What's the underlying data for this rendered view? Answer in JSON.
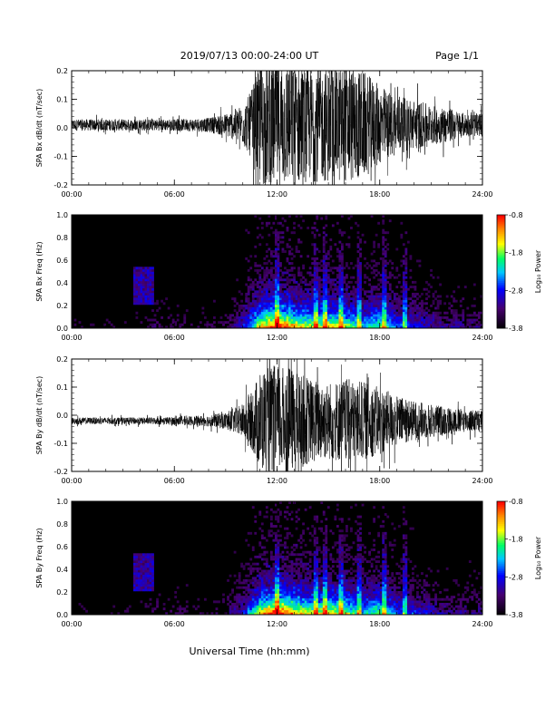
{
  "header": {
    "title": "2019/07/13  00:00-24:00 UT",
    "page": "Page 1/1"
  },
  "footer": {
    "xlabel": "Universal Time (hh:mm)"
  },
  "colorbar": {
    "label": "Log₁₀ Power",
    "ticks": [
      "-0.8",
      "-1.8",
      "-2.8",
      "-3.8"
    ],
    "range": [
      -3.8,
      -0.8
    ],
    "colors": [
      "#000000",
      "#5a007a",
      "#0000ff",
      "#00c8ff",
      "#00ff66",
      "#ffff00",
      "#ff8800",
      "#ff0000"
    ]
  },
  "chart_data": [
    {
      "type": "line",
      "ylabel": "SPA Bx dB/dt (nT/sec)",
      "ylim": [
        -0.2,
        0.2
      ],
      "yticks": [
        "0.2",
        "0.1",
        "0.0",
        "-0.1",
        "-0.2"
      ],
      "xlim": [
        0,
        24
      ],
      "xticks": [
        "00:00",
        "06:00",
        "12:00",
        "18:00",
        "24:00"
      ],
      "envelope": {
        "t": [
          0,
          2,
          4,
          6,
          8,
          9,
          10,
          10.5,
          11,
          12,
          13,
          14,
          15,
          16,
          17,
          18,
          19,
          20,
          21,
          22,
          23,
          24
        ],
        "amp": [
          0.02,
          0.02,
          0.02,
          0.02,
          0.025,
          0.04,
          0.07,
          0.12,
          0.22,
          0.22,
          0.22,
          0.2,
          0.2,
          0.21,
          0.19,
          0.14,
          0.1,
          0.09,
          0.07,
          0.06,
          0.04,
          0.04
        ],
        "offset": 0.01
      }
    },
    {
      "type": "heatmap",
      "ylabel": "SPA Bx Freq (Hz)",
      "ylim": [
        0,
        1
      ],
      "yticks": [
        "1.0",
        "0.8",
        "0.6",
        "0.4",
        "0.2",
        "0.0"
      ],
      "xlim": [
        0,
        24
      ],
      "xticks": [
        "00:00",
        "06:00",
        "12:00",
        "18:00",
        "24:00"
      ],
      "zlim": [
        -3.8,
        -0.8
      ]
    },
    {
      "type": "line",
      "ylabel": "SPA By dB/dt (nT/sec)",
      "ylim": [
        -0.2,
        0.2
      ],
      "yticks": [
        "0.2",
        "0.1",
        "0.0",
        "-0.1",
        "-0.2"
      ],
      "xlim": [
        0,
        24
      ],
      "xticks": [
        "00:00",
        "06:00",
        "12:00",
        "18:00",
        "24:00"
      ],
      "envelope": {
        "t": [
          0,
          2,
          4,
          6,
          8,
          9,
          10,
          10.5,
          11,
          12,
          13,
          14,
          15,
          16,
          17,
          18,
          19,
          20,
          21,
          22,
          23,
          24
        ],
        "amp": [
          0.012,
          0.012,
          0.012,
          0.014,
          0.02,
          0.03,
          0.06,
          0.1,
          0.18,
          0.2,
          0.18,
          0.15,
          0.14,
          0.15,
          0.14,
          0.12,
          0.09,
          0.07,
          0.06,
          0.05,
          0.04,
          0.04
        ],
        "offset": -0.02
      }
    },
    {
      "type": "heatmap",
      "ylabel": "SPA By Freq (Hz)",
      "ylim": [
        0,
        1
      ],
      "yticks": [
        "1.0",
        "0.8",
        "0.6",
        "0.4",
        "0.2",
        "0.0"
      ],
      "xlim": [
        0,
        24
      ],
      "xticks": [
        "00:00",
        "06:00",
        "12:00",
        "18:00",
        "24:00"
      ],
      "zlim": [
        -3.8,
        -0.8
      ]
    }
  ]
}
